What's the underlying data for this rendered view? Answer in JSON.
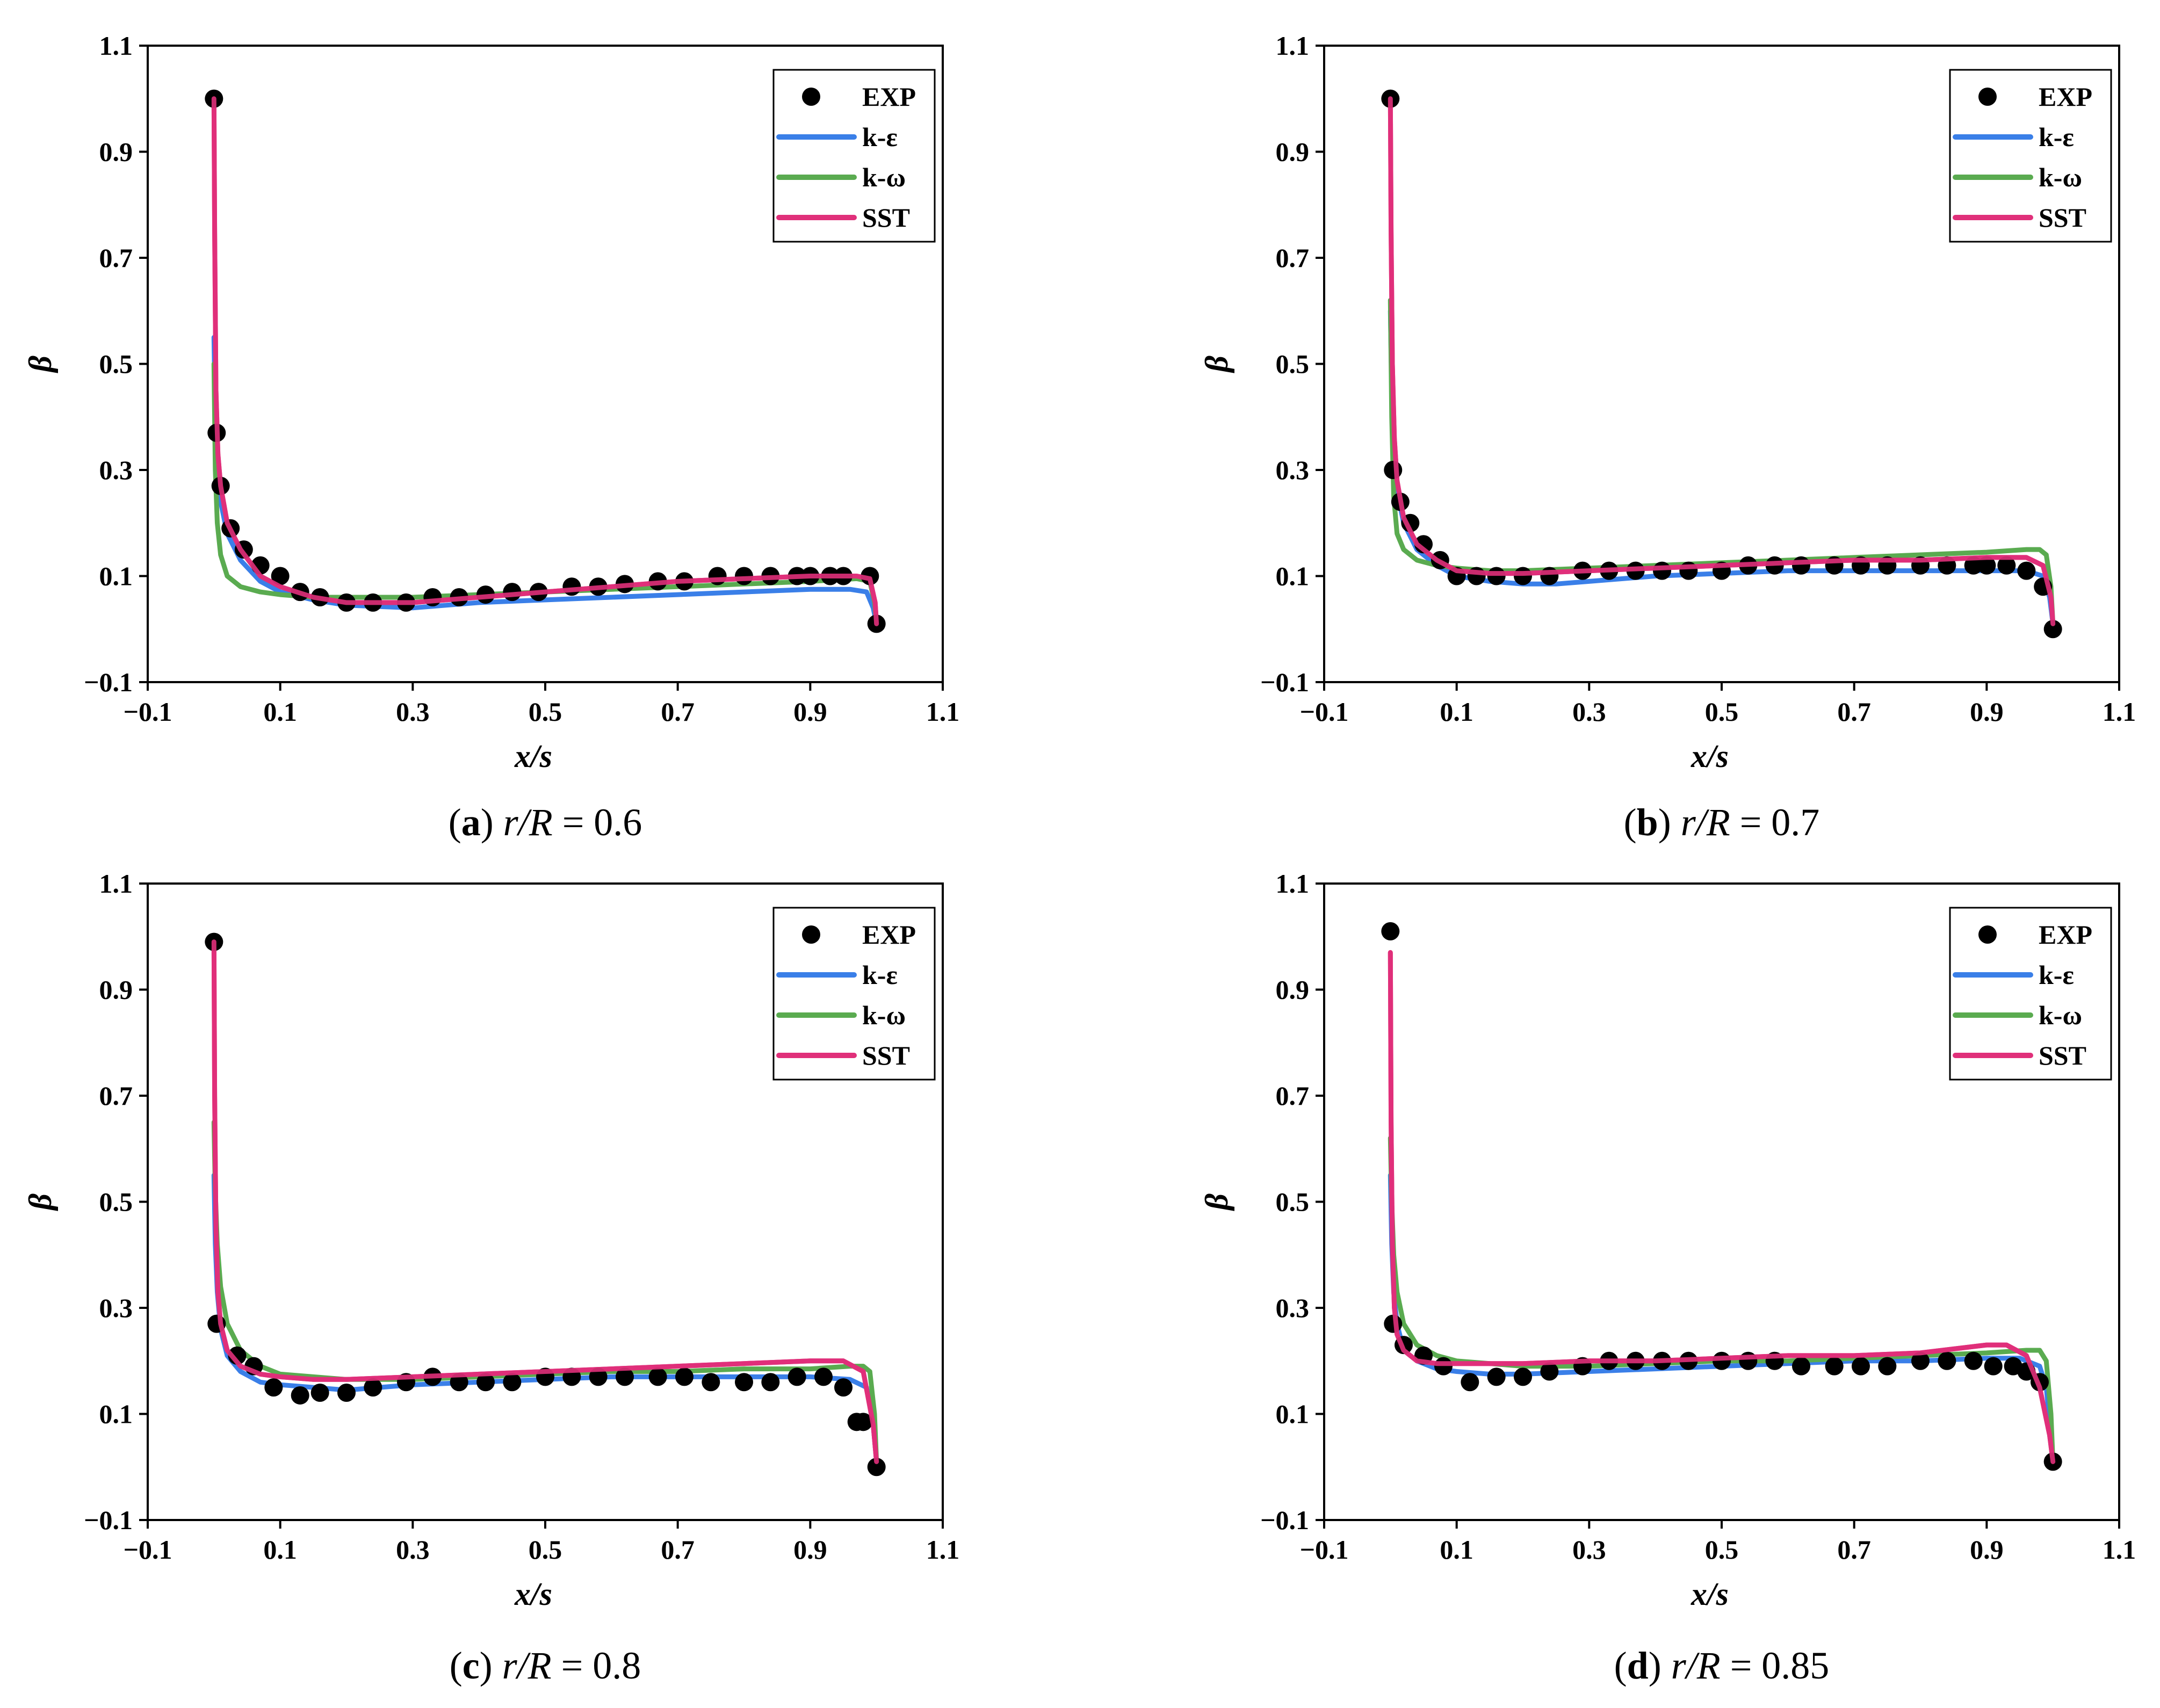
{
  "figure": {
    "x_label_main": "x",
    "x_label_rest": "/s",
    "y_label": "β",
    "x_ticks": [
      "−0.1",
      "0.1",
      "0.3",
      "0.5",
      "0.7",
      "0.9",
      "1.1"
    ],
    "y_ticks": [
      "−0.1",
      "0.1",
      "0.3",
      "0.5",
      "0.7",
      "0.9",
      "1.1"
    ],
    "colors": {
      "EXP": "#000000",
      "k-ε": "#3a7fe8",
      "k-ω": "#5aab50",
      "SST": "#e0307a"
    }
  },
  "chart_data": [
    {
      "type": "line",
      "panel": "a",
      "caption": {
        "letter": "a",
        "var": "r/R",
        "value": "= 0.6"
      },
      "xlabel": "x/s",
      "ylabel": "β",
      "xlim": [
        -0.1,
        1.1
      ],
      "ylim": [
        -0.1,
        1.1
      ],
      "legend_position": "top-right",
      "legend": [
        "EXP",
        "k-ε",
        "k-ω",
        "SST"
      ],
      "series": [
        {
          "name": "EXP",
          "kind": "markers",
          "x": [
            0.0,
            0.004,
            0.01,
            0.025,
            0.045,
            0.07,
            0.1,
            0.13,
            0.16,
            0.2,
            0.24,
            0.29,
            0.33,
            0.37,
            0.41,
            0.45,
            0.49,
            0.54,
            0.58,
            0.62,
            0.67,
            0.71,
            0.76,
            0.8,
            0.84,
            0.88,
            0.9,
            0.93,
            0.95,
            0.99,
            1.0
          ],
          "y": [
            1.0,
            0.37,
            0.27,
            0.19,
            0.15,
            0.12,
            0.1,
            0.07,
            0.06,
            0.05,
            0.05,
            0.05,
            0.06,
            0.06,
            0.065,
            0.07,
            0.07,
            0.08,
            0.08,
            0.085,
            0.09,
            0.09,
            0.1,
            0.1,
            0.1,
            0.1,
            0.1,
            0.1,
            0.1,
            0.1,
            0.01
          ]
        },
        {
          "name": "k-ε",
          "kind": "line",
          "x": [
            0.0,
            0.002,
            0.005,
            0.01,
            0.02,
            0.04,
            0.07,
            0.1,
            0.15,
            0.2,
            0.3,
            0.4,
            0.5,
            0.6,
            0.7,
            0.8,
            0.9,
            0.96,
            0.985,
            0.995,
            1.0
          ],
          "y": [
            0.55,
            0.4,
            0.3,
            0.24,
            0.18,
            0.13,
            0.09,
            0.07,
            0.055,
            0.045,
            0.04,
            0.05,
            0.055,
            0.06,
            0.065,
            0.07,
            0.075,
            0.075,
            0.07,
            0.04,
            0.01
          ]
        },
        {
          "name": "k-ω",
          "kind": "line",
          "x": [
            0.0,
            0.002,
            0.005,
            0.01,
            0.02,
            0.04,
            0.07,
            0.1,
            0.15,
            0.2,
            0.3,
            0.4,
            0.5,
            0.6,
            0.7,
            0.8,
            0.9,
            0.97,
            0.99,
            0.997,
            1.0
          ],
          "y": [
            0.5,
            0.3,
            0.2,
            0.14,
            0.1,
            0.08,
            0.07,
            0.065,
            0.06,
            0.06,
            0.06,
            0.065,
            0.07,
            0.075,
            0.08,
            0.085,
            0.09,
            0.095,
            0.09,
            0.05,
            0.01
          ]
        },
        {
          "name": "SST",
          "kind": "line",
          "x": [
            0.0,
            0.001,
            0.003,
            0.006,
            0.01,
            0.02,
            0.04,
            0.07,
            0.1,
            0.15,
            0.2,
            0.3,
            0.4,
            0.5,
            0.6,
            0.7,
            0.8,
            0.9,
            0.97,
            0.99,
            0.998,
            1.0
          ],
          "y": [
            1.0,
            0.75,
            0.45,
            0.33,
            0.27,
            0.2,
            0.15,
            0.1,
            0.08,
            0.06,
            0.05,
            0.05,
            0.06,
            0.07,
            0.08,
            0.09,
            0.095,
            0.1,
            0.1,
            0.095,
            0.05,
            0.01
          ]
        }
      ]
    },
    {
      "type": "line",
      "panel": "b",
      "caption": {
        "letter": "b",
        "var": "r/R",
        "value": "= 0.7"
      },
      "xlabel": "x/s",
      "ylabel": "β",
      "xlim": [
        -0.1,
        1.1
      ],
      "ylim": [
        -0.1,
        1.1
      ],
      "legend_position": "top-right",
      "legend": [
        "EXP",
        "k-ε",
        "k-ω",
        "SST"
      ],
      "series": [
        {
          "name": "EXP",
          "kind": "markers",
          "x": [
            0.0,
            0.004,
            0.015,
            0.03,
            0.05,
            0.075,
            0.1,
            0.13,
            0.16,
            0.2,
            0.24,
            0.29,
            0.33,
            0.37,
            0.41,
            0.45,
            0.5,
            0.54,
            0.58,
            0.62,
            0.67,
            0.71,
            0.75,
            0.8,
            0.84,
            0.88,
            0.9,
            0.93,
            0.96,
            0.985,
            1.0
          ],
          "y": [
            1.0,
            0.3,
            0.24,
            0.2,
            0.16,
            0.13,
            0.1,
            0.1,
            0.1,
            0.1,
            0.1,
            0.11,
            0.11,
            0.11,
            0.11,
            0.11,
            0.11,
            0.12,
            0.12,
            0.12,
            0.12,
            0.12,
            0.12,
            0.12,
            0.12,
            0.12,
            0.12,
            0.12,
            0.11,
            0.08,
            0.0
          ]
        },
        {
          "name": "k-ε",
          "kind": "line",
          "x": [
            0.0,
            0.002,
            0.005,
            0.01,
            0.02,
            0.04,
            0.07,
            0.1,
            0.15,
            0.2,
            0.25,
            0.3,
            0.4,
            0.5,
            0.6,
            0.7,
            0.8,
            0.9,
            0.96,
            0.985,
            0.995,
            1.0
          ],
          "y": [
            0.6,
            0.45,
            0.33,
            0.26,
            0.2,
            0.15,
            0.12,
            0.1,
            0.09,
            0.085,
            0.085,
            0.09,
            0.1,
            0.105,
            0.11,
            0.11,
            0.11,
            0.11,
            0.11,
            0.1,
            0.06,
            0.01
          ]
        },
        {
          "name": "k-ω",
          "kind": "line",
          "x": [
            0.0,
            0.002,
            0.005,
            0.01,
            0.02,
            0.04,
            0.07,
            0.1,
            0.15,
            0.2,
            0.3,
            0.4,
            0.5,
            0.6,
            0.7,
            0.8,
            0.9,
            0.96,
            0.98,
            0.99,
            0.997,
            1.0
          ],
          "y": [
            0.62,
            0.4,
            0.25,
            0.18,
            0.15,
            0.13,
            0.12,
            0.115,
            0.11,
            0.11,
            0.115,
            0.12,
            0.125,
            0.13,
            0.135,
            0.14,
            0.145,
            0.15,
            0.15,
            0.14,
            0.08,
            0.01
          ]
        },
        {
          "name": "SST",
          "kind": "line",
          "x": [
            0.0,
            0.001,
            0.003,
            0.006,
            0.01,
            0.02,
            0.04,
            0.07,
            0.1,
            0.15,
            0.2,
            0.3,
            0.4,
            0.5,
            0.6,
            0.7,
            0.8,
            0.9,
            0.96,
            0.985,
            0.997,
            1.0
          ],
          "y": [
            1.0,
            0.75,
            0.5,
            0.36,
            0.28,
            0.21,
            0.16,
            0.13,
            0.11,
            0.105,
            0.105,
            0.11,
            0.115,
            0.12,
            0.125,
            0.13,
            0.13,
            0.135,
            0.135,
            0.12,
            0.06,
            0.01
          ]
        }
      ]
    },
    {
      "type": "line",
      "panel": "c",
      "caption": {
        "letter": "c",
        "var": "r/R",
        "value": "= 0.8"
      },
      "xlabel": "x/s",
      "ylabel": "β",
      "xlim": [
        -0.1,
        1.1
      ],
      "ylim": [
        -0.1,
        1.1
      ],
      "legend_position": "top-right",
      "legend": [
        "EXP",
        "k-ε",
        "k-ω",
        "SST"
      ],
      "series": [
        {
          "name": "EXP",
          "kind": "markers",
          "x": [
            0.0,
            0.004,
            0.035,
            0.06,
            0.09,
            0.13,
            0.16,
            0.2,
            0.24,
            0.29,
            0.33,
            0.37,
            0.41,
            0.45,
            0.5,
            0.54,
            0.58,
            0.62,
            0.67,
            0.71,
            0.75,
            0.8,
            0.84,
            0.88,
            0.92,
            0.95,
            0.97,
            0.98,
            1.0
          ],
          "y": [
            0.99,
            0.27,
            0.21,
            0.19,
            0.15,
            0.135,
            0.14,
            0.14,
            0.15,
            0.16,
            0.17,
            0.16,
            0.16,
            0.16,
            0.17,
            0.17,
            0.17,
            0.17,
            0.17,
            0.17,
            0.16,
            0.16,
            0.16,
            0.17,
            0.17,
            0.15,
            0.085,
            0.085,
            0.0
          ]
        },
        {
          "name": "k-ε",
          "kind": "line",
          "x": [
            0.0,
            0.002,
            0.005,
            0.01,
            0.02,
            0.04,
            0.07,
            0.1,
            0.15,
            0.2,
            0.25,
            0.3,
            0.4,
            0.5,
            0.6,
            0.7,
            0.8,
            0.9,
            0.96,
            0.985,
            0.995,
            1.0
          ],
          "y": [
            0.55,
            0.42,
            0.33,
            0.26,
            0.21,
            0.18,
            0.16,
            0.155,
            0.15,
            0.145,
            0.15,
            0.155,
            0.16,
            0.165,
            0.17,
            0.17,
            0.17,
            0.17,
            0.165,
            0.15,
            0.08,
            0.01
          ]
        },
        {
          "name": "k-ω",
          "kind": "line",
          "x": [
            0.0,
            0.002,
            0.005,
            0.01,
            0.02,
            0.04,
            0.07,
            0.1,
            0.15,
            0.2,
            0.3,
            0.4,
            0.5,
            0.6,
            0.7,
            0.8,
            0.9,
            0.96,
            0.98,
            0.99,
            0.997,
            1.0
          ],
          "y": [
            0.65,
            0.52,
            0.42,
            0.34,
            0.27,
            0.22,
            0.19,
            0.175,
            0.17,
            0.165,
            0.165,
            0.17,
            0.175,
            0.18,
            0.18,
            0.185,
            0.185,
            0.19,
            0.19,
            0.18,
            0.1,
            0.01
          ]
        },
        {
          "name": "SST",
          "kind": "line",
          "x": [
            0.0,
            0.001,
            0.003,
            0.006,
            0.01,
            0.02,
            0.04,
            0.07,
            0.1,
            0.15,
            0.2,
            0.3,
            0.4,
            0.5,
            0.6,
            0.7,
            0.8,
            0.9,
            0.95,
            0.98,
            0.995,
            1.0
          ],
          "y": [
            0.99,
            0.7,
            0.45,
            0.33,
            0.27,
            0.22,
            0.19,
            0.175,
            0.17,
            0.165,
            0.165,
            0.17,
            0.175,
            0.18,
            0.185,
            0.19,
            0.195,
            0.2,
            0.2,
            0.18,
            0.08,
            0.01
          ]
        }
      ]
    },
    {
      "type": "line",
      "panel": "d",
      "caption": {
        "letter": "d",
        "var": "r/R",
        "value": "= 0.85"
      },
      "xlabel": "x/s",
      "ylabel": "β",
      "xlim": [
        -0.1,
        1.1
      ],
      "ylim": [
        -0.1,
        1.1
      ],
      "legend_position": "top-right",
      "legend": [
        "EXP",
        "k-ε",
        "k-ω",
        "SST"
      ],
      "series": [
        {
          "name": "EXP",
          "kind": "markers",
          "x": [
            0.0,
            0.004,
            0.02,
            0.05,
            0.08,
            0.12,
            0.16,
            0.2,
            0.24,
            0.29,
            0.33,
            0.37,
            0.41,
            0.45,
            0.5,
            0.54,
            0.58,
            0.62,
            0.67,
            0.71,
            0.75,
            0.8,
            0.84,
            0.88,
            0.91,
            0.94,
            0.96,
            0.98,
            1.0
          ],
          "y": [
            1.01,
            0.27,
            0.23,
            0.21,
            0.19,
            0.16,
            0.17,
            0.17,
            0.18,
            0.19,
            0.2,
            0.2,
            0.2,
            0.2,
            0.2,
            0.2,
            0.2,
            0.19,
            0.19,
            0.19,
            0.19,
            0.2,
            0.2,
            0.2,
            0.19,
            0.19,
            0.18,
            0.16,
            0.01
          ]
        },
        {
          "name": "k-ε",
          "kind": "line",
          "x": [
            0.0,
            0.002,
            0.005,
            0.01,
            0.02,
            0.04,
            0.07,
            0.1,
            0.15,
            0.2,
            0.3,
            0.4,
            0.5,
            0.6,
            0.7,
            0.8,
            0.9,
            0.95,
            0.98,
            0.99,
            0.997,
            1.0
          ],
          "y": [
            0.55,
            0.42,
            0.33,
            0.27,
            0.22,
            0.2,
            0.185,
            0.18,
            0.175,
            0.175,
            0.18,
            0.185,
            0.19,
            0.195,
            0.2,
            0.2,
            0.205,
            0.205,
            0.19,
            0.15,
            0.06,
            0.01
          ]
        },
        {
          "name": "k-ω",
          "kind": "line",
          "x": [
            0.0,
            0.002,
            0.005,
            0.01,
            0.02,
            0.04,
            0.07,
            0.1,
            0.15,
            0.2,
            0.3,
            0.4,
            0.5,
            0.6,
            0.7,
            0.8,
            0.9,
            0.96,
            0.98,
            0.99,
            0.997,
            1.0
          ],
          "y": [
            0.62,
            0.5,
            0.4,
            0.33,
            0.27,
            0.23,
            0.21,
            0.2,
            0.195,
            0.19,
            0.19,
            0.195,
            0.2,
            0.2,
            0.205,
            0.21,
            0.215,
            0.22,
            0.22,
            0.2,
            0.1,
            0.01
          ]
        },
        {
          "name": "SST",
          "kind": "line",
          "x": [
            0.0,
            0.001,
            0.003,
            0.006,
            0.01,
            0.02,
            0.04,
            0.07,
            0.1,
            0.15,
            0.2,
            0.3,
            0.4,
            0.5,
            0.6,
            0.7,
            0.8,
            0.9,
            0.93,
            0.96,
            0.98,
            0.995,
            1.0
          ],
          "y": [
            0.97,
            0.65,
            0.42,
            0.3,
            0.25,
            0.22,
            0.2,
            0.195,
            0.195,
            0.195,
            0.195,
            0.2,
            0.2,
            0.205,
            0.21,
            0.21,
            0.215,
            0.23,
            0.23,
            0.21,
            0.15,
            0.06,
            0.01
          ]
        }
      ]
    }
  ]
}
